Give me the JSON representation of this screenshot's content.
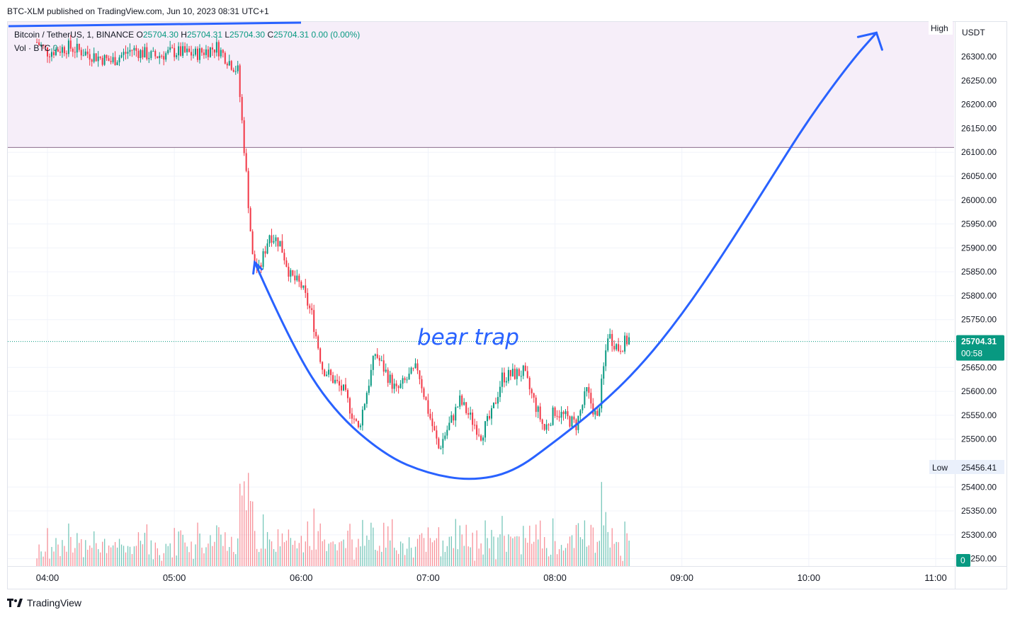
{
  "header": {
    "published": "BTC-XLM published on TradingView.com, Jun 10, 2023 08:31 UTC+1"
  },
  "legend": {
    "symbol": "Bitcoin / TetherUS, 1, BINANCE",
    "o_label": "O",
    "o_value": "25704.30",
    "h_label": "H",
    "h_value": "25704.31",
    "l_label": "L",
    "l_value": "25704.30",
    "c_label": "C",
    "c_value": "25704.31",
    "change": "0.00 (0.00%)",
    "vol_label": "Vol · BTC",
    "vol_value": "0"
  },
  "footer": {
    "brand": "TradingView"
  },
  "colors": {
    "up": "#089981",
    "down": "#f23645",
    "drawing": "#2962ff",
    "zone_fill": "#f6eef9",
    "zone_line": "#8b6d8b",
    "price_badge": "#089981"
  },
  "chart_data": {
    "type": "candlestick",
    "currency": "USDT",
    "x_ticks": [
      "04:00",
      "05:00",
      "06:00",
      "07:00",
      "08:00",
      "09:00",
      "10:00",
      "11:00"
    ],
    "y_ticks": [
      "26300.00",
      "26250.00",
      "26200.00",
      "26150.00",
      "26100.00",
      "26050.00",
      "26000.00",
      "25950.00",
      "25900.00",
      "25850.00",
      "25800.00",
      "25750.00",
      "25650.00",
      "25600.00",
      "25550.00",
      "25500.00",
      "25400.00",
      "25350.00",
      "25300.00",
      "25250.00"
    ],
    "y_range": [
      25245,
      26355
    ],
    "last_price": "25704.31",
    "countdown": "00:58",
    "high_label": "High",
    "low_label": "Low",
    "low_value": "25456.41",
    "volume_last": "0",
    "resistance_level": 26110,
    "annotation": "bear trap",
    "price_path": [
      [
        "03:55",
        26330
      ],
      [
        "04:00",
        26310
      ],
      [
        "04:10",
        26320
      ],
      [
        "04:20",
        26305
      ],
      [
        "04:30",
        26290
      ],
      [
        "04:40",
        26315
      ],
      [
        "04:50",
        26300
      ],
      [
        "05:00",
        26310
      ],
      [
        "05:10",
        26305
      ],
      [
        "05:20",
        26320
      ],
      [
        "05:30",
        26270
      ],
      [
        "05:33",
        26110
      ],
      [
        "05:37",
        25880
      ],
      [
        "05:40",
        25850
      ],
      [
        "05:45",
        25930
      ],
      [
        "05:50",
        25910
      ],
      [
        "05:55",
        25840
      ],
      [
        "06:00",
        25820
      ],
      [
        "06:05",
        25760
      ],
      [
        "06:10",
        25650
      ],
      [
        "06:20",
        25600
      ],
      [
        "06:27",
        25520
      ],
      [
        "06:35",
        25680
      ],
      [
        "06:45",
        25600
      ],
      [
        "06:55",
        25650
      ],
      [
        "07:00",
        25560
      ],
      [
        "07:05",
        25480
      ],
      [
        "07:15",
        25580
      ],
      [
        "07:25",
        25510
      ],
      [
        "07:30",
        25550
      ],
      [
        "07:35",
        25630
      ],
      [
        "07:45",
        25640
      ],
      [
        "07:55",
        25520
      ],
      [
        "08:00",
        25560
      ],
      [
        "08:10",
        25530
      ],
      [
        "08:15",
        25600
      ],
      [
        "08:20",
        25540
      ],
      [
        "08:25",
        25720
      ],
      [
        "08:30",
        25690
      ],
      [
        "08:35",
        25710
      ]
    ],
    "bear_trap_curve": [
      [
        "05:38",
        25870
      ],
      [
        "05:55",
        25700
      ],
      [
        "06:15",
        25560
      ],
      [
        "06:40",
        25465
      ],
      [
        "07:00",
        25428
      ],
      [
        "07:20",
        25413
      ],
      [
        "07:40",
        25430
      ],
      [
        "08:00",
        25495
      ],
      [
        "08:20",
        25565
      ],
      [
        "08:40",
        25650
      ],
      [
        "09:00",
        25760
      ],
      [
        "09:20",
        25890
      ],
      [
        "09:40",
        26030
      ],
      [
        "10:00",
        26170
      ],
      [
        "10:20",
        26290
      ],
      [
        "10:32",
        26350
      ]
    ]
  }
}
